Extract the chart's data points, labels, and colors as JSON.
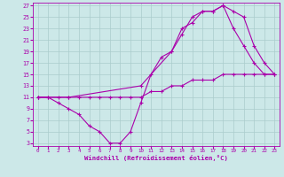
{
  "xlabel": "Windchill (Refroidissement éolien,°C)",
  "bg_color": "#cce8e8",
  "grid_color": "#aacccc",
  "line_color": "#aa00aa",
  "xlim": [
    -0.5,
    23.5
  ],
  "ylim": [
    2.5,
    27.5
  ],
  "xticks": [
    0,
    1,
    2,
    3,
    4,
    5,
    6,
    7,
    8,
    9,
    10,
    11,
    12,
    13,
    14,
    15,
    16,
    17,
    18,
    19,
    20,
    21,
    22,
    23
  ],
  "yticks": [
    3,
    5,
    7,
    9,
    11,
    13,
    15,
    17,
    19,
    21,
    23,
    25,
    27
  ],
  "line1_x": [
    0,
    1,
    2,
    3,
    4,
    5,
    6,
    7,
    8,
    9,
    10,
    11,
    12,
    13,
    14,
    15,
    16,
    17,
    18,
    19,
    20,
    21,
    22,
    23
  ],
  "line1_y": [
    11,
    11,
    10,
    9,
    8,
    6,
    5,
    3,
    3,
    5,
    10,
    15,
    18,
    19,
    23,
    24,
    26,
    26,
    27,
    23,
    20,
    17,
    15,
    15
  ],
  "line2_x": [
    0,
    1,
    2,
    3,
    4,
    5,
    6,
    7,
    8,
    9,
    10,
    11,
    12,
    13,
    14,
    15,
    16,
    17,
    18,
    19,
    20,
    21,
    22,
    23
  ],
  "line2_y": [
    11,
    11,
    11,
    11,
    11,
    11,
    11,
    11,
    11,
    11,
    11,
    12,
    12,
    13,
    13,
    14,
    14,
    14,
    15,
    15,
    15,
    15,
    15,
    15
  ],
  "line3_x": [
    0,
    3,
    10,
    13,
    14,
    15,
    16,
    17,
    18,
    19,
    20,
    21,
    22,
    23
  ],
  "line3_y": [
    11,
    11,
    13,
    19,
    22,
    25,
    26,
    26,
    27,
    26,
    25,
    20,
    17,
    15
  ]
}
